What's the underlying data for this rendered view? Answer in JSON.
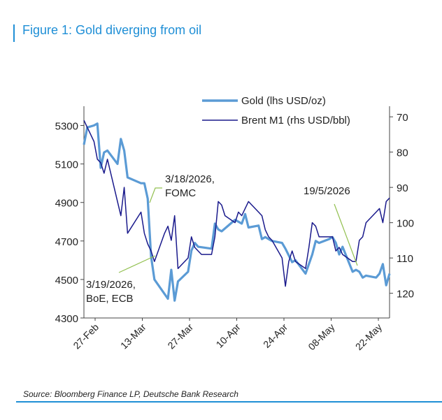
{
  "figure": {
    "title": "Figure 1: Gold diverging from oil",
    "source": "Source: Bloomberg Finance LP, Deutsche Bank Research",
    "accent_color": "#1f8fd6"
  },
  "chart_data": {
    "type": "line",
    "x_tick_labels": [
      "27-Feb",
      "13-Mar",
      "27-Mar",
      "10-Apr",
      "24-Apr",
      "08-May",
      "22-May"
    ],
    "left_axis": {
      "ticks": [
        4300,
        4500,
        4700,
        4900,
        5100,
        5300
      ],
      "range": [
        4300,
        5400
      ]
    },
    "right_axis": {
      "ticks": [
        70,
        80,
        90,
        100,
        110,
        120
      ],
      "range": [
        67,
        127
      ],
      "inverted": true
    },
    "series": [
      {
        "name": "Gold (lhs USD/oz)",
        "axis": "left",
        "color": "#5b9bd5",
        "points": [
          [
            "2026-02-27",
            5200
          ],
          [
            "2026-02-28",
            5290
          ],
          [
            "2026-03-02",
            5300
          ],
          [
            "2026-03-03",
            5310
          ],
          [
            "2026-03-04",
            5080
          ],
          [
            "2026-03-05",
            5160
          ],
          [
            "2026-03-06",
            5170
          ],
          [
            "2026-03-09",
            5100
          ],
          [
            "2026-03-10",
            5230
          ],
          [
            "2026-03-11",
            5170
          ],
          [
            "2026-03-12",
            5030
          ],
          [
            "2026-03-16",
            5000
          ],
          [
            "2026-03-17",
            5000
          ],
          [
            "2026-03-18",
            4920
          ],
          [
            "2026-03-19",
            4620
          ],
          [
            "2026-03-20",
            4500
          ],
          [
            "2026-03-24",
            4400
          ],
          [
            "2026-03-25",
            4550
          ],
          [
            "2026-03-26",
            4390
          ],
          [
            "2026-03-27",
            4490
          ],
          [
            "2026-03-30",
            4540
          ],
          [
            "2026-03-31",
            4650
          ],
          [
            "2026-04-01",
            4690
          ],
          [
            "2026-04-02",
            4670
          ],
          [
            "2026-04-06",
            4660
          ],
          [
            "2026-04-07",
            4790
          ],
          [
            "2026-04-08",
            4760
          ],
          [
            "2026-04-09",
            4750
          ],
          [
            "2026-04-13",
            4810
          ],
          [
            "2026-04-15",
            4790
          ],
          [
            "2026-04-16",
            4840
          ],
          [
            "2026-04-17",
            4770
          ],
          [
            "2026-04-20",
            4780
          ],
          [
            "2026-04-21",
            4710
          ],
          [
            "2026-04-22",
            4720
          ],
          [
            "2026-04-23",
            4710
          ],
          [
            "2026-04-24",
            4700
          ],
          [
            "2026-04-27",
            4690
          ],
          [
            "2026-04-28",
            4660
          ],
          [
            "2026-04-30",
            4590
          ],
          [
            "2026-05-01",
            4600
          ],
          [
            "2026-05-04",
            4530
          ],
          [
            "2026-05-05",
            4580
          ],
          [
            "2026-05-06",
            4630
          ],
          [
            "2026-05-07",
            4700
          ],
          [
            "2026-05-08",
            4690
          ],
          [
            "2026-05-11",
            4710
          ],
          [
            "2026-05-12",
            4720
          ],
          [
            "2026-05-13",
            4690
          ],
          [
            "2026-05-14",
            4630
          ],
          [
            "2026-05-15",
            4670
          ],
          [
            "2026-05-18",
            4540
          ],
          [
            "2026-05-19",
            4550
          ],
          [
            "2026-05-20",
            4540
          ],
          [
            "2026-05-21",
            4510
          ],
          [
            "2026-05-22",
            4520
          ],
          [
            "2026-05-25",
            4510
          ],
          [
            "2026-05-26",
            4530
          ],
          [
            "2026-05-27",
            4580
          ],
          [
            "2026-05-28",
            4470
          ],
          [
            "2026-05-29",
            4530
          ]
        ]
      },
      {
        "name": "Brent M1 (rhs USD/bbl)",
        "axis": "right",
        "color": "#1a1a8c",
        "points": [
          [
            "2026-02-27",
            71
          ],
          [
            "2026-02-28",
            73
          ],
          [
            "2026-03-02",
            77
          ],
          [
            "2026-03-03",
            82
          ],
          [
            "2026-03-04",
            83
          ],
          [
            "2026-03-05",
            86
          ],
          [
            "2026-03-06",
            82
          ],
          [
            "2026-03-09",
            94
          ],
          [
            "2026-03-10",
            98
          ],
          [
            "2026-03-11",
            90
          ],
          [
            "2026-03-12",
            103
          ],
          [
            "2026-03-16",
            97
          ],
          [
            "2026-03-17",
            103
          ],
          [
            "2026-03-18",
            106
          ],
          [
            "2026-03-19",
            108
          ],
          [
            "2026-03-20",
            111
          ],
          [
            "2026-03-23",
            103
          ],
          [
            "2026-03-24",
            101
          ],
          [
            "2026-03-25",
            105
          ],
          [
            "2026-03-26",
            98
          ],
          [
            "2026-03-27",
            113
          ],
          [
            "2026-03-30",
            110
          ],
          [
            "2026-03-31",
            104
          ],
          [
            "2026-04-01",
            107
          ],
          [
            "2026-04-02",
            108
          ],
          [
            "2026-04-03",
            109
          ],
          [
            "2026-04-06",
            109
          ],
          [
            "2026-04-07",
            104
          ],
          [
            "2026-04-08",
            94
          ],
          [
            "2026-04-09",
            95
          ],
          [
            "2026-04-10",
            98
          ],
          [
            "2026-04-13",
            100
          ],
          [
            "2026-04-14",
            97
          ],
          [
            "2026-04-15",
            98
          ],
          [
            "2026-04-16",
            96
          ],
          [
            "2026-04-17",
            94
          ],
          [
            "2026-04-20",
            97
          ],
          [
            "2026-04-21",
            98
          ],
          [
            "2026-04-22",
            102
          ],
          [
            "2026-04-23",
            104
          ],
          [
            "2026-04-24",
            105
          ],
          [
            "2026-04-27",
            110
          ],
          [
            "2026-04-28",
            118
          ],
          [
            "2026-04-29",
            111
          ],
          [
            "2026-04-30",
            108
          ],
          [
            "2026-05-01",
            111
          ],
          [
            "2026-05-04",
            113
          ],
          [
            "2026-05-05",
            107
          ],
          [
            "2026-05-06",
            100
          ],
          [
            "2026-05-07",
            101
          ],
          [
            "2026-05-08",
            104
          ],
          [
            "2026-05-11",
            104
          ],
          [
            "2026-05-12",
            104
          ],
          [
            "2026-05-13",
            108
          ],
          [
            "2026-05-14",
            107
          ],
          [
            "2026-05-15",
            109
          ],
          [
            "2026-05-18",
            111
          ],
          [
            "2026-05-19",
            111
          ],
          [
            "2026-05-20",
            105
          ],
          [
            "2026-05-21",
            104
          ],
          [
            "2026-05-22",
            100
          ],
          [
            "2026-05-25",
            97
          ],
          [
            "2026-05-26",
            96
          ],
          [
            "2026-05-27",
            100
          ],
          [
            "2026-05-28",
            94
          ],
          [
            "2026-05-29",
            93
          ]
        ]
      }
    ],
    "legend": {
      "placement": "top-right",
      "entries": [
        "Gold (lhs USD/oz)",
        "Brent M1 (rhs USD/bbl)"
      ]
    },
    "annotations": [
      {
        "text_lines": [
          "3/18/2026,",
          "FOMC"
        ],
        "date": "2026-03-18",
        "color": "#92c050"
      },
      {
        "text_lines": [
          "3/19/2026,",
          "BoE, ECB"
        ],
        "date": "2026-03-19",
        "color": "#92c050"
      },
      {
        "text_lines": [
          "19/5/2026"
        ],
        "date": "2026-05-19",
        "color": "#92c050"
      }
    ]
  }
}
